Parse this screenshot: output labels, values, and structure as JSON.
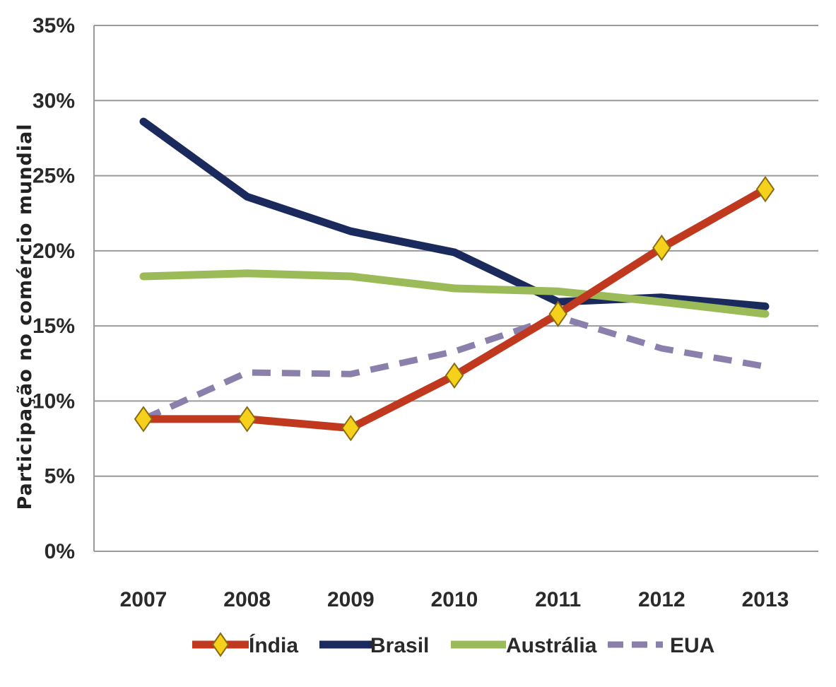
{
  "chart_data": {
    "type": "line",
    "title": "",
    "xlabel": "",
    "ylabel": "Participação no comércio mundial",
    "categories": [
      "2007",
      "2008",
      "2009",
      "2010",
      "2011",
      "2012",
      "2013"
    ],
    "ylim": [
      0,
      35
    ],
    "yticks": [
      "0%",
      "5%",
      "10%",
      "15%",
      "20%",
      "25%",
      "30%",
      "35%"
    ],
    "grid": true,
    "legend": "bottom",
    "series": [
      {
        "name": "Índia",
        "values": [
          8.8,
          8.8,
          8.2,
          11.7,
          15.8,
          20.2,
          24.1
        ],
        "color": "#c0391f",
        "marker": "diamond",
        "dashed": false
      },
      {
        "name": "Brasil",
        "values": [
          28.6,
          23.6,
          21.3,
          19.9,
          16.6,
          16.9,
          16.3
        ],
        "color": "#1b2a5c",
        "marker": "none",
        "dashed": false
      },
      {
        "name": "Austrália",
        "values": [
          18.3,
          18.5,
          18.3,
          17.5,
          17.3,
          16.6,
          15.8
        ],
        "color": "#9bbb59",
        "marker": "none",
        "dashed": false
      },
      {
        "name": "EUA",
        "values": [
          8.8,
          11.9,
          11.8,
          13.3,
          15.6,
          13.5,
          12.3
        ],
        "color": "#8a80ab",
        "marker": "none",
        "dashed": true
      }
    ]
  }
}
